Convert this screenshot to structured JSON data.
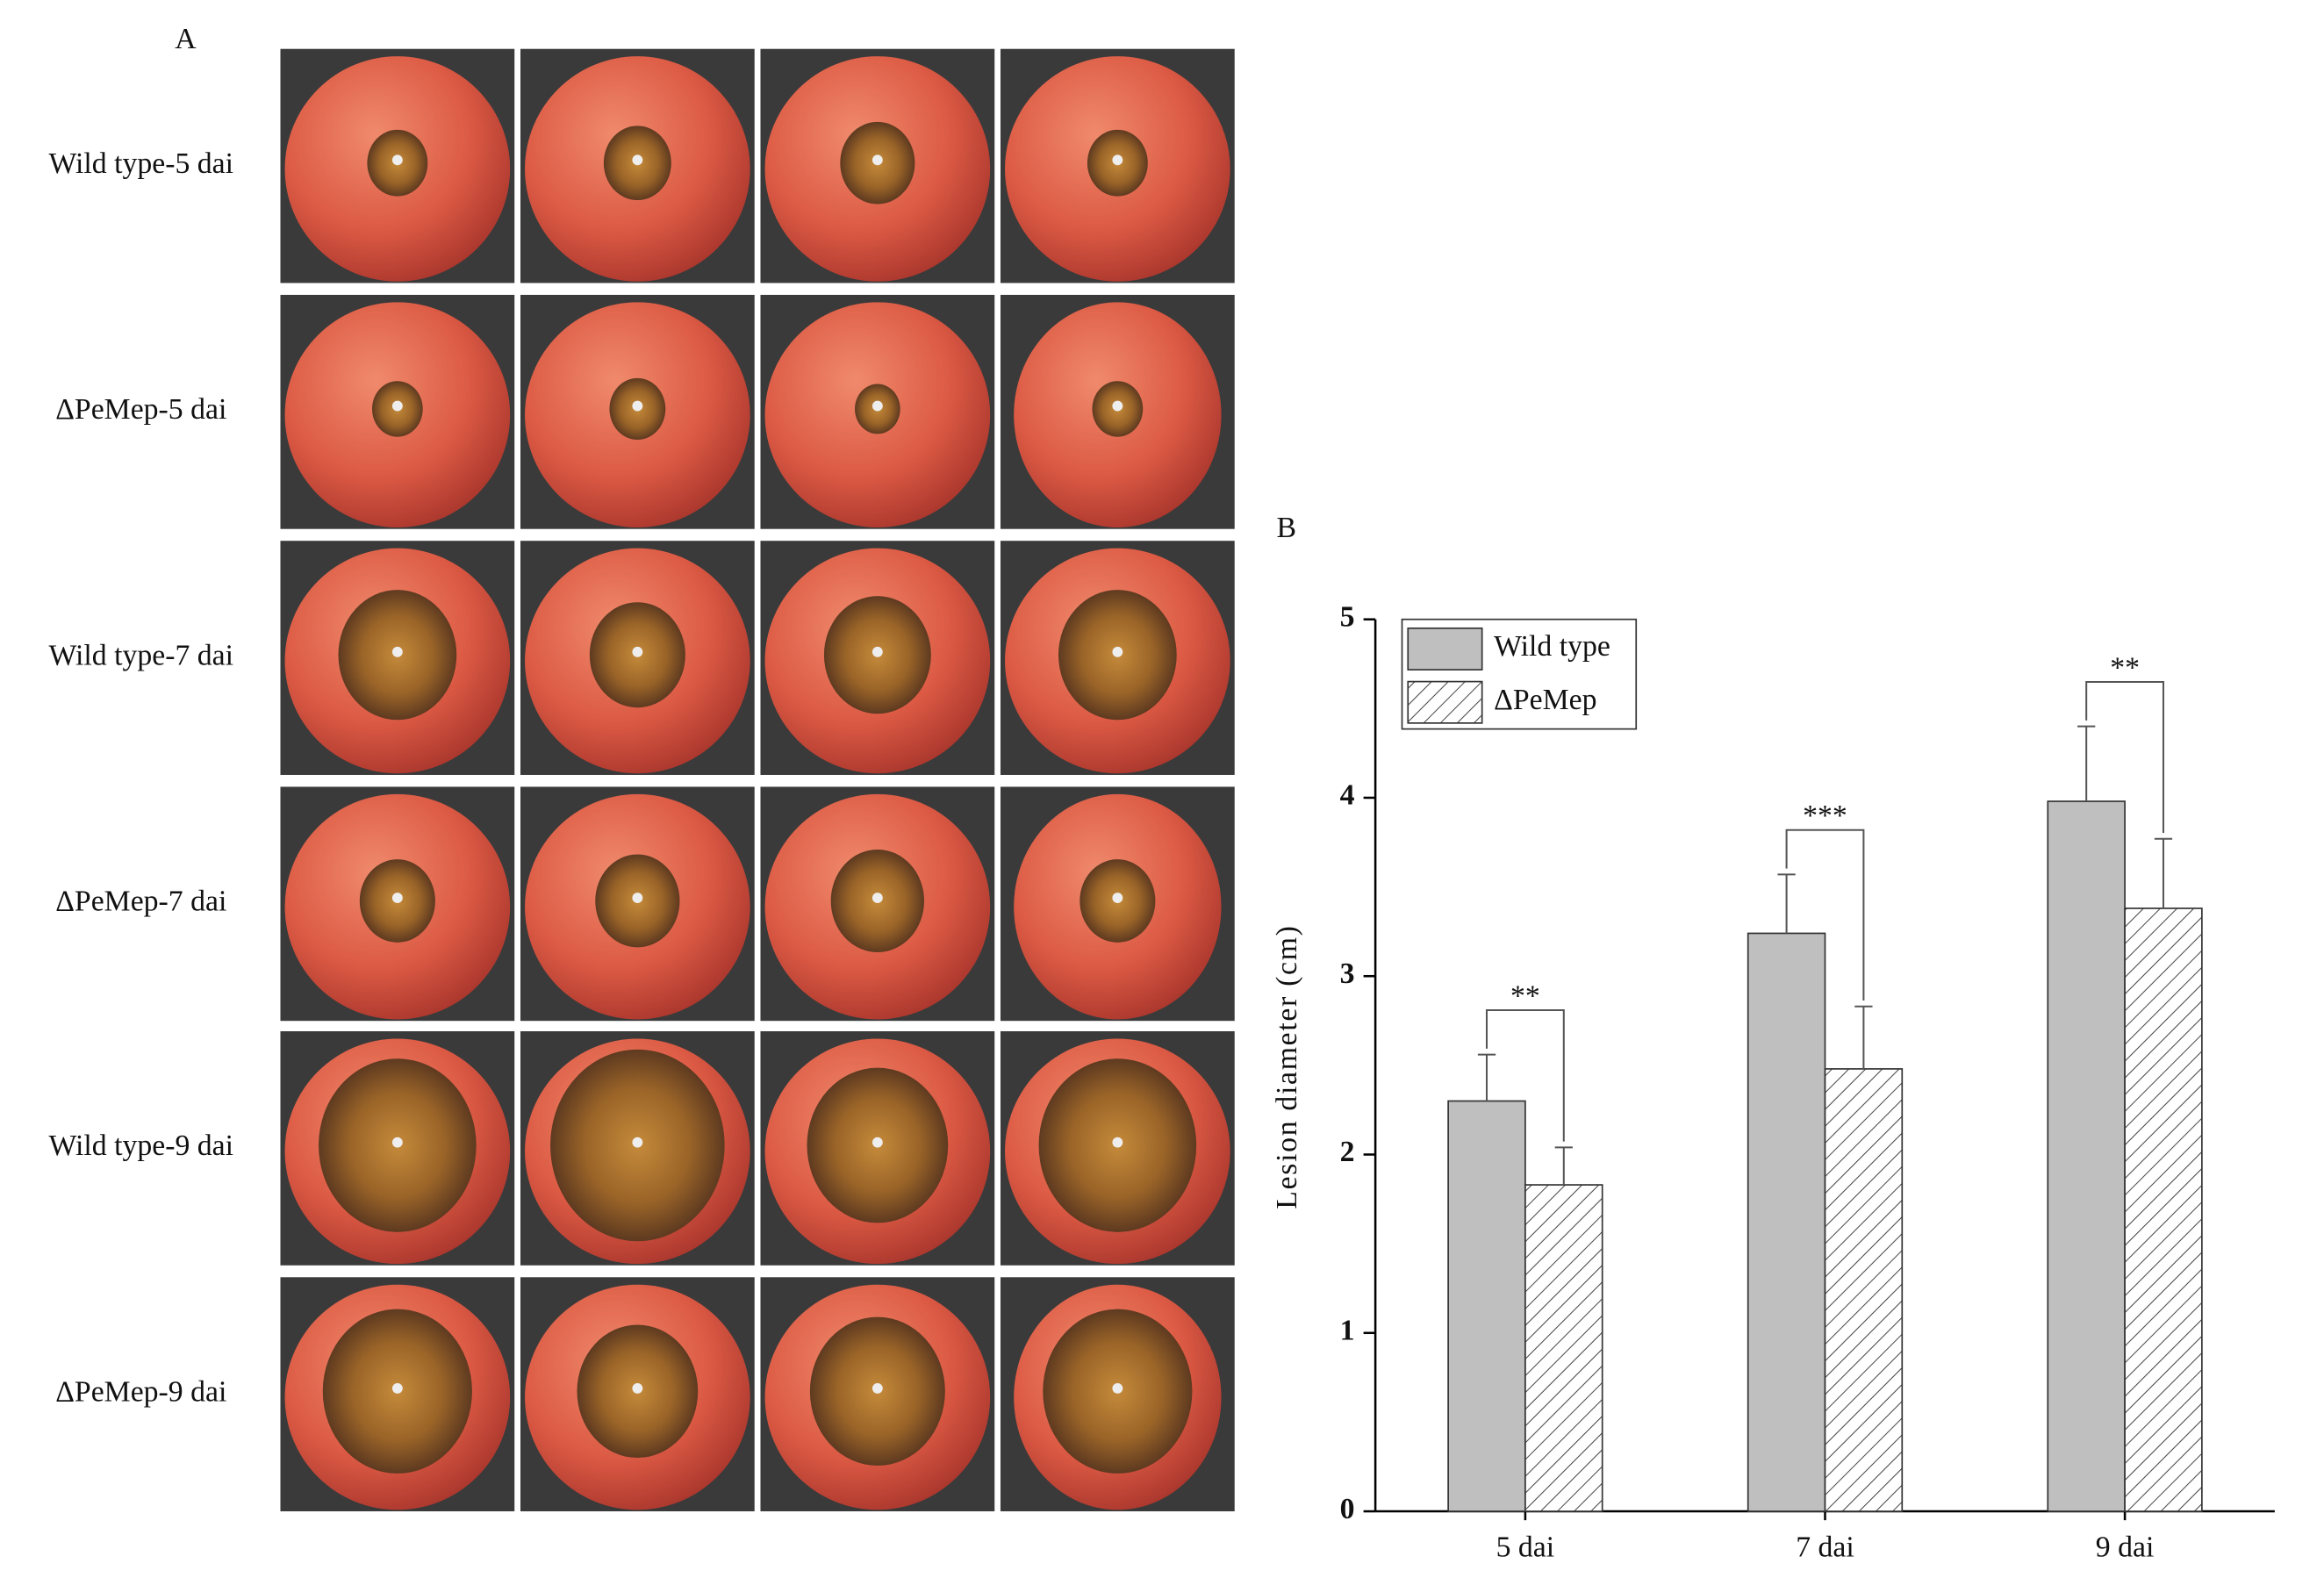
{
  "panel_a": {
    "label": "A",
    "rows": [
      "Wild type-5 dai",
      "ΔPeMep-5 dai",
      "Wild type-7 dai",
      "ΔPeMep-7 dai",
      "Wild type-9 dai",
      "ΔPeMep-9 dai"
    ]
  },
  "chart_data": {
    "type": "bar",
    "label": "B",
    "y_label": "Lesion diameter (cm)",
    "categories": [
      "5 dai",
      "7 dai",
      "9 dai"
    ],
    "series": [
      {
        "name": "Wild type",
        "color": "#bfbfbf",
        "pattern": "solid",
        "values": [
          2.3,
          3.24,
          3.98
        ],
        "errors": [
          0.26,
          0.33,
          0.42
        ]
      },
      {
        "name": "ΔPeMep",
        "color": "#ffffff",
        "pattern": "hatch",
        "values": [
          1.83,
          2.48,
          3.38
        ],
        "errors": [
          0.21,
          0.35,
          0.39
        ]
      }
    ],
    "significance": [
      "**",
      "***",
      "**"
    ],
    "ylim": [
      0,
      5
    ],
    "yticks": [
      0,
      1,
      2,
      3,
      4,
      5
    ],
    "legend": "top-left"
  }
}
